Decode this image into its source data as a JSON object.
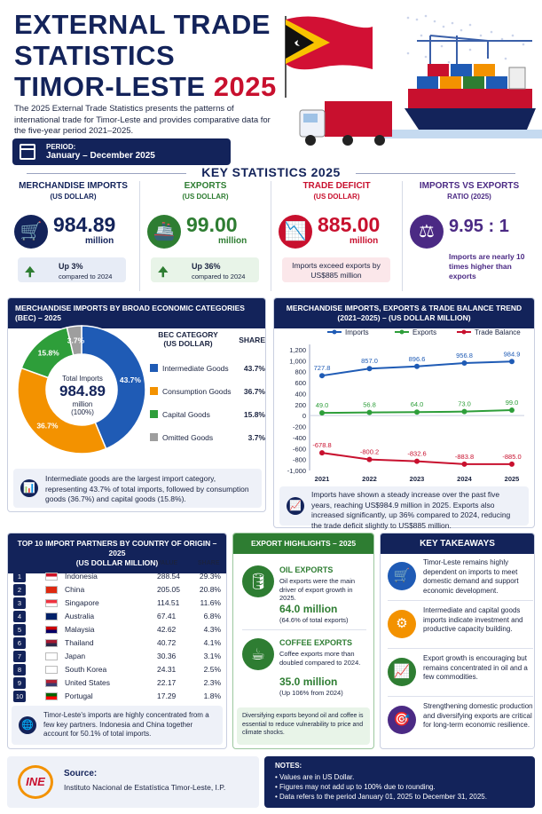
{
  "header": {
    "title_line1": "EXTERNAL TRADE",
    "title_line2": "STATISTICS",
    "title_line3": "TIMOR-LESTE",
    "title_year": "2025",
    "intro": "The 2025 External Trade Statistics presents the patterns of international trade for Timor-Leste and provides comparative data for the five-year period 2021–2025.",
    "period_label": "PERIOD:",
    "period_value": "January – December 2025"
  },
  "colors": {
    "navy": "#13235a",
    "red": "#c8102e",
    "green": "#2e7d32",
    "purple": "#4b2a84",
    "orange": "#f39200",
    "blue": "#1f5bb5",
    "grey": "#9e9e9e"
  },
  "key_stats": {
    "heading": "KEY STATISTICS 2025",
    "cards": [
      {
        "title": "MERCHANDISE IMPORTS",
        "sub": "(US DOLLAR)",
        "value": "984.89",
        "unit": "million",
        "icon": "cart-icon",
        "note1": "Up 3%",
        "note2": "compared to 2024"
      },
      {
        "title": "EXPORTS",
        "sub": "(US DOLLAR)",
        "value": "99.00",
        "unit": "million",
        "icon": "ship-icon",
        "note1": "Up 36%",
        "note2": "compared to 2024"
      },
      {
        "title": "TRADE DEFICIT",
        "sub": "(US DOLLAR)",
        "value": "885.00",
        "unit": "million",
        "icon": "declining-chart-icon",
        "note1": "Imports exceed exports by US$885 million"
      },
      {
        "title": "IMPORTS VS EXPORTS",
        "sub": "RATIO (2025)",
        "value": "9.95 : 1",
        "icon": "balance-scale-icon",
        "note1": "Imports are nearly 10 times higher than exports"
      }
    ]
  },
  "bec": {
    "heading": "MERCHANDISE IMPORTS BY BROAD ECONOMIC CATEGORIES (BEC) – 2025",
    "center_label": "Total Imports",
    "center_value": "984.89",
    "center_unit": "million",
    "center_pct": "(100%)",
    "legend_head_cat": "BEC CATEGORY",
    "legend_head_cat2": "(US DOLLAR)",
    "legend_head_share": "SHARE",
    "note": "Intermediate goods are the largest import category, representing 43.7% of total imports, followed by consumption goods (36.7%) and capital goods (15.8%)."
  },
  "trend": {
    "heading": "MERCHANDISE IMPORTS, EXPORTS & TRADE BALANCE TREND (2021–2025) – (US DOLLAR MILLION)",
    "note": "Imports have shown a steady increase over the past five years, reaching US$984.9 million in 2025. Exports also increased significantly, up 36% compared to 2024, reducing the trade deficit slightly to US$885 million."
  },
  "chart_data": [
    {
      "type": "pie",
      "title": "MERCHANDISE IMPORTS BY BROAD ECONOMIC CATEGORIES (BEC) – 2025",
      "categories": [
        "Intermediate Goods",
        "Consumption Goods",
        "Capital Goods",
        "Omitted Goods"
      ],
      "values": [
        43.7,
        36.7,
        15.8,
        3.7
      ],
      "labels": [
        "43.7%",
        "36.7%",
        "15.8%",
        "3.7%"
      ],
      "colors": [
        "#1f5bb5",
        "#f39200",
        "#2e9e3a",
        "#9e9e9e"
      ]
    },
    {
      "type": "line",
      "title": "MERCHANDISE IMPORTS, EXPORTS & TRADE BALANCE TREND (2021–2025) – (US DOLLAR MILLION)",
      "x": [
        "2021",
        "2022",
        "2023",
        "2024",
        "2025"
      ],
      "series": [
        {
          "name": "Imports",
          "values": [
            727.8,
            857.0,
            896.6,
            956.8,
            984.9
          ],
          "labels": [
            "727.8",
            "857.0",
            "896.6",
            "956.8",
            "984.9"
          ],
          "color": "#1f5bb5"
        },
        {
          "name": "Exports",
          "values": [
            49.0,
            56.8,
            64.0,
            73.0,
            99.0
          ],
          "labels": [
            "49.0",
            "56.8",
            "64.0",
            "73.0",
            "99.0"
          ],
          "color": "#2e9e3a"
        },
        {
          "name": "Trade Balance",
          "values": [
            -678.8,
            -800.2,
            -832.6,
            -883.8,
            -885.0
          ],
          "labels": [
            "-678.8",
            "-800.2",
            "-832.6",
            "-883.8",
            "-885.0"
          ],
          "color": "#c8102e"
        }
      ],
      "ylim": [
        -1000,
        1200
      ],
      "yticks": [
        "1,200",
        "1,000",
        "800",
        "600",
        "400",
        "200",
        "0",
        "-200",
        "-400",
        "-600",
        "-800",
        "-1,000"
      ],
      "legend": "top",
      "grid": false
    }
  ],
  "partners": {
    "heading": "TOP 10 IMPORT PARTNERS BY COUNTRY OF ORIGIN – 2025",
    "heading2": "(US DOLLAR MILLION)",
    "col_value": "VALUE",
    "col_share": "SHARE",
    "rows": [
      {
        "rank": "1",
        "country": "Indonesia",
        "value": "288.54",
        "share": "29.3%"
      },
      {
        "rank": "2",
        "country": "China",
        "value": "205.05",
        "share": "20.8%"
      },
      {
        "rank": "3",
        "country": "Singapore",
        "value": "114.51",
        "share": "11.6%"
      },
      {
        "rank": "4",
        "country": "Australia",
        "value": "67.41",
        "share": "6.8%"
      },
      {
        "rank": "5",
        "country": "Malaysia",
        "value": "42.62",
        "share": "4.3%"
      },
      {
        "rank": "6",
        "country": "Thailand",
        "value": "40.72",
        "share": "4.1%"
      },
      {
        "rank": "7",
        "country": "Japan",
        "value": "30.36",
        "share": "3.1%"
      },
      {
        "rank": "8",
        "country": "South Korea",
        "value": "24.31",
        "share": "2.5%"
      },
      {
        "rank": "9",
        "country": "United States",
        "value": "22.17",
        "share": "2.3%"
      },
      {
        "rank": "10",
        "country": "Portugal",
        "value": "17.29",
        "share": "1.8%"
      }
    ],
    "note": "Timor-Leste's imports are highly concentrated from a few key partners. Indonesia and China together account for 50.1% of total imports."
  },
  "export_highlights": {
    "heading": "EXPORT HIGHLIGHTS – 2025",
    "oil_title": "OIL EXPORTS",
    "oil_text": "Oil exports were the main driver of export growth in 2025.",
    "oil_value": "64.0 million",
    "oil_sub": "(64.6% of total exports)",
    "coffee_title": "COFFEE EXPORTS",
    "coffee_text": "Coffee exports more than doubled compared to 2024.",
    "coffee_value": "35.0 million",
    "coffee_sub": "(Up 106% from 2024)",
    "note": "Diversifying exports beyond oil and coffee is essential to reduce vulnerability to price and climate shocks."
  },
  "takeaways": {
    "heading": "KEY TAKEAWAYS",
    "items": [
      "Timor-Leste remains highly dependent on imports to meet domestic demand and support economic development.",
      "Intermediate and capital goods imports indicate investment and productive capacity building.",
      "Export growth is encouraging but remains concentrated in oil and a few commodities.",
      "Strengthening domestic production and diversifying exports are critical for long-term economic resilience."
    ]
  },
  "footer": {
    "source_label": "Source:",
    "source_value": "Instituto Nacional de Estatística Timor-Leste, I.P.",
    "logo_text": "INE",
    "notes_label": "NOTES:",
    "notes": [
      "• Values are in US Dollar.",
      "• Figures may not add up to 100% due to rounding.",
      "• Data refers to the period January 01, 2025 to December 31, 2025."
    ]
  }
}
